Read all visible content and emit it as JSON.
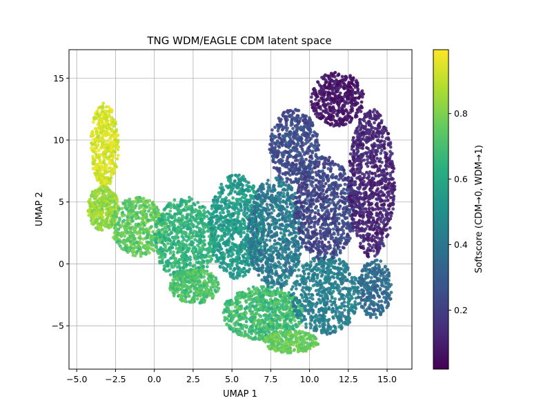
{
  "chart_data": {
    "type": "scatter",
    "title": "TNG WDM/EAGLE CDM latent space",
    "xlabel": "UMAP 1",
    "ylabel": "UMAP 2",
    "xlim": [
      -5.5,
      16.6
    ],
    "ylim": [
      -8.5,
      17.3
    ],
    "xticks": [
      -5.0,
      -2.5,
      0.0,
      2.5,
      5.0,
      7.5,
      10.0,
      12.5,
      15.0
    ],
    "xtick_labels": [
      "−5.0",
      "−2.5",
      "0.0",
      "2.5",
      "5.0",
      "7.5",
      "10.0",
      "12.5",
      "15.0"
    ],
    "yticks": [
      -5,
      0,
      5,
      10,
      15
    ],
    "ytick_labels": [
      "−5",
      "0",
      "5",
      "10",
      "15"
    ],
    "grid": true,
    "colormap": "viridis",
    "colorbar": {
      "label": "Softscore (CDM→0, WDM→1)",
      "range": [
        0.02,
        0.995
      ],
      "ticks": [
        0.2,
        0.4,
        0.6,
        0.8
      ],
      "tick_labels": [
        "0.2",
        "0.4",
        "0.6",
        "0.8"
      ]
    },
    "point_regions": [
      {
        "cx": -3.2,
        "cy": 9.6,
        "rx": 0.9,
        "ry": 3.4,
        "n": 420,
        "score_range": [
          0.88,
          0.99
        ]
      },
      {
        "cx": -3.3,
        "cy": 4.5,
        "rx": 1.0,
        "ry": 1.8,
        "n": 350,
        "score_range": [
          0.78,
          0.9
        ]
      },
      {
        "cx": -1.0,
        "cy": 3.0,
        "rx": 1.8,
        "ry": 2.4,
        "n": 500,
        "score_range": [
          0.68,
          0.82
        ]
      },
      {
        "cx": 2.0,
        "cy": 2.0,
        "rx": 2.0,
        "ry": 3.4,
        "n": 700,
        "score_range": [
          0.58,
          0.72
        ]
      },
      {
        "cx": 2.6,
        "cy": -1.8,
        "rx": 1.6,
        "ry": 1.4,
        "n": 350,
        "score_range": [
          0.66,
          0.78
        ]
      },
      {
        "cx": 5.3,
        "cy": 3.0,
        "rx": 1.8,
        "ry": 4.2,
        "n": 800,
        "score_range": [
          0.48,
          0.62
        ]
      },
      {
        "cx": 7.0,
        "cy": -4.0,
        "rx": 2.6,
        "ry": 2.2,
        "n": 750,
        "score_range": [
          0.62,
          0.76
        ]
      },
      {
        "cx": 8.8,
        "cy": -6.3,
        "rx": 1.8,
        "ry": 0.9,
        "n": 280,
        "score_range": [
          0.72,
          0.82
        ]
      },
      {
        "cx": 7.8,
        "cy": 2.5,
        "rx": 1.8,
        "ry": 4.5,
        "n": 850,
        "score_range": [
          0.34,
          0.5
        ]
      },
      {
        "cx": 9.0,
        "cy": 9.5,
        "rx": 1.6,
        "ry": 3.0,
        "n": 500,
        "score_range": [
          0.18,
          0.3
        ]
      },
      {
        "cx": 11.0,
        "cy": -2.5,
        "rx": 2.2,
        "ry": 3.2,
        "n": 650,
        "score_range": [
          0.38,
          0.5
        ]
      },
      {
        "cx": 11.0,
        "cy": 4.5,
        "rx": 2.0,
        "ry": 4.2,
        "n": 800,
        "score_range": [
          0.15,
          0.3
        ]
      },
      {
        "cx": 11.8,
        "cy": 13.3,
        "rx": 1.7,
        "ry": 2.2,
        "n": 450,
        "score_range": [
          0.03,
          0.12
        ]
      },
      {
        "cx": 14.0,
        "cy": 6.5,
        "rx": 1.5,
        "ry": 6.0,
        "n": 900,
        "score_range": [
          0.06,
          0.18
        ]
      },
      {
        "cx": 14.2,
        "cy": -2.0,
        "rx": 1.1,
        "ry": 2.4,
        "n": 300,
        "score_range": [
          0.3,
          0.42
        ]
      }
    ]
  }
}
